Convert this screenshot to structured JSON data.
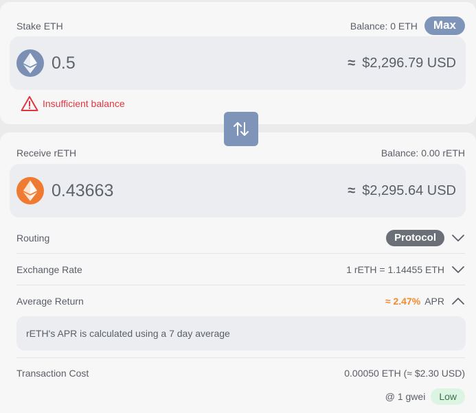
{
  "stake": {
    "label": "Stake ETH",
    "balance": "Balance: 0 ETH",
    "max_label": "Max",
    "amount": "0.5",
    "approx_symbol": "≈",
    "usd_value": "$2,296.79 USD",
    "warning": "Insufficient balance",
    "token_icon": "eth-icon"
  },
  "swap": {
    "icon": "swap-arrows-icon"
  },
  "receive": {
    "label": "Receive rETH",
    "balance": "Balance: 0.00 rETH",
    "amount": "0.43663",
    "approx_symbol": "≈",
    "usd_value": "$2,295.64 USD",
    "token_icon": "reth-icon"
  },
  "details": {
    "routing": {
      "label": "Routing",
      "value": "Protocol"
    },
    "exchange_rate": {
      "label": "Exchange Rate",
      "value": "1 rETH = 1.14455 ETH"
    },
    "average_return": {
      "label": "Average Return",
      "value": "≈ 2.47%",
      "unit": "APR",
      "info": "rETH's APR is calculated using a 7 day average"
    },
    "transaction_cost": {
      "label": "Transaction Cost",
      "value": "0.00050 ETH (≈ $2.30 USD)",
      "gas": "@ 1 gwei",
      "gas_level": "Low"
    }
  },
  "colors": {
    "accent": "#7e94b9",
    "warning": "#e0353f",
    "apr": "#f28a2e",
    "eth": "#7a8fb3",
    "reth": "#ef7b32"
  }
}
